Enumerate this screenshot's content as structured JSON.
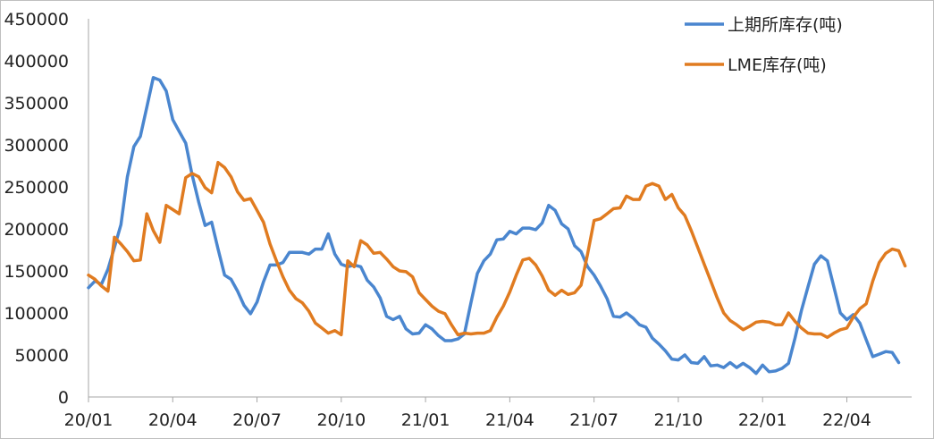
{
  "chart_data": {
    "type": "line",
    "title": "",
    "xlabel": "",
    "ylabel": "",
    "ylim": [
      0,
      450000
    ],
    "yticks": [
      0,
      50000,
      100000,
      150000,
      200000,
      250000,
      300000,
      350000,
      400000,
      450000
    ],
    "ytick_labels": [
      "0",
      "50000",
      "100000",
      "150000",
      "200000",
      "250000",
      "300000",
      "350000",
      "400000",
      "450000"
    ],
    "xticks": [
      {
        "t": 0,
        "label": "20/01"
      },
      {
        "t": 13,
        "label": "20/04"
      },
      {
        "t": 26,
        "label": "20/07"
      },
      {
        "t": 39,
        "label": "20/10"
      },
      {
        "t": 52,
        "label": "21/01"
      },
      {
        "t": 65,
        "label": "21/04"
      },
      {
        "t": 78,
        "label": "21/07"
      },
      {
        "t": 91,
        "label": "21/10"
      },
      {
        "t": 104,
        "label": "22/01"
      },
      {
        "t": 117,
        "label": "22/04"
      }
    ],
    "xlim": [
      0,
      127
    ],
    "legend_position": "top-right",
    "grid": false,
    "series": [
      {
        "name": "上期所库存(吨)",
        "color": "#4a86cf",
        "points": [
          [
            0,
            130000
          ],
          [
            1,
            138000
          ],
          [
            2,
            134000
          ],
          [
            3,
            152000
          ],
          [
            4,
            178000
          ],
          [
            5,
            205000
          ],
          [
            6,
            262000
          ],
          [
            7,
            298000
          ],
          [
            8,
            310000
          ],
          [
            9,
            345000
          ],
          [
            10,
            380000
          ],
          [
            11,
            377000
          ],
          [
            12,
            364000
          ],
          [
            13,
            330000
          ],
          [
            14,
            316000
          ],
          [
            15,
            302000
          ],
          [
            16,
            264000
          ],
          [
            17,
            232000
          ],
          [
            18,
            204000
          ],
          [
            19,
            208000
          ],
          [
            20,
            176000
          ],
          [
            21,
            145000
          ],
          [
            22,
            140000
          ],
          [
            23,
            126000
          ],
          [
            24,
            109000
          ],
          [
            25,
            99000
          ],
          [
            26,
            113000
          ],
          [
            27,
            137000
          ],
          [
            28,
            157000
          ],
          [
            29,
            157000
          ],
          [
            30,
            160000
          ],
          [
            31,
            172000
          ],
          [
            32,
            172000
          ],
          [
            33,
            172000
          ],
          [
            34,
            170000
          ],
          [
            35,
            176000
          ],
          [
            36,
            176000
          ],
          [
            37,
            194000
          ],
          [
            38,
            170000
          ],
          [
            39,
            158000
          ],
          [
            40,
            155000
          ],
          [
            41,
            157000
          ],
          [
            42,
            155000
          ],
          [
            43,
            139000
          ],
          [
            44,
            131000
          ],
          [
            45,
            118000
          ],
          [
            46,
            96000
          ],
          [
            47,
            92000
          ],
          [
            48,
            96000
          ],
          [
            49,
            81000
          ],
          [
            50,
            75000
          ],
          [
            51,
            76000
          ],
          [
            52,
            86000
          ],
          [
            53,
            81000
          ],
          [
            54,
            73000
          ],
          [
            55,
            67000
          ],
          [
            56,
            67000
          ],
          [
            57,
            69000
          ],
          [
            58,
            75000
          ],
          [
            59,
            112000
          ],
          [
            60,
            147000
          ],
          [
            61,
            162000
          ],
          [
            62,
            170000
          ],
          [
            63,
            187000
          ],
          [
            64,
            188000
          ],
          [
            65,
            197000
          ],
          [
            66,
            194000
          ],
          [
            67,
            201000
          ],
          [
            68,
            201000
          ],
          [
            69,
            199000
          ],
          [
            70,
            207000
          ],
          [
            71,
            228000
          ],
          [
            72,
            222000
          ],
          [
            73,
            206000
          ],
          [
            74,
            200000
          ],
          [
            75,
            180000
          ],
          [
            76,
            173000
          ],
          [
            77,
            155000
          ],
          [
            78,
            145000
          ],
          [
            79,
            132000
          ],
          [
            80,
            117000
          ],
          [
            81,
            96000
          ],
          [
            82,
            95000
          ],
          [
            83,
            100000
          ],
          [
            84,
            94000
          ],
          [
            85,
            86000
          ],
          [
            86,
            83000
          ],
          [
            87,
            70000
          ],
          [
            88,
            63000
          ],
          [
            89,
            55000
          ],
          [
            90,
            45000
          ],
          [
            91,
            44000
          ],
          [
            92,
            50000
          ],
          [
            93,
            41000
          ],
          [
            94,
            40000
          ],
          [
            95,
            48000
          ],
          [
            96,
            37000
          ],
          [
            97,
            38000
          ],
          [
            98,
            35000
          ],
          [
            99,
            41000
          ],
          [
            100,
            35000
          ],
          [
            101,
            40000
          ],
          [
            102,
            35000
          ],
          [
            103,
            28000
          ],
          [
            104,
            38000
          ],
          [
            105,
            30000
          ],
          [
            106,
            31000
          ],
          [
            107,
            34000
          ],
          [
            108,
            40000
          ],
          [
            109,
            70000
          ],
          [
            110,
            103000
          ],
          [
            111,
            131000
          ],
          [
            112,
            158000
          ],
          [
            113,
            168000
          ],
          [
            114,
            162000
          ],
          [
            115,
            131000
          ],
          [
            116,
            100000
          ],
          [
            117,
            92000
          ],
          [
            118,
            98000
          ],
          [
            119,
            88000
          ],
          [
            120,
            68000
          ],
          [
            121,
            48000
          ],
          [
            122,
            51000
          ],
          [
            123,
            54000
          ],
          [
            124,
            53000
          ],
          [
            125,
            41000
          ]
        ]
      },
      {
        "name": "LME库存(吨)",
        "color": "#e07b20",
        "points": [
          [
            0,
            145000
          ],
          [
            1,
            140000
          ],
          [
            2,
            132000
          ],
          [
            3,
            126000
          ],
          [
            4,
            190000
          ],
          [
            5,
            182000
          ],
          [
            6,
            173000
          ],
          [
            7,
            162000
          ],
          [
            8,
            163000
          ],
          [
            9,
            218000
          ],
          [
            10,
            198000
          ],
          [
            11,
            184000
          ],
          [
            12,
            228000
          ],
          [
            13,
            223000
          ],
          [
            14,
            218000
          ],
          [
            15,
            261000
          ],
          [
            16,
            266000
          ],
          [
            17,
            262000
          ],
          [
            18,
            249000
          ],
          [
            19,
            243000
          ],
          [
            20,
            279000
          ],
          [
            21,
            273000
          ],
          [
            22,
            262000
          ],
          [
            23,
            244000
          ],
          [
            24,
            234000
          ],
          [
            25,
            236000
          ],
          [
            26,
            222000
          ],
          [
            27,
            208000
          ],
          [
            28,
            182000
          ],
          [
            29,
            162000
          ],
          [
            30,
            143000
          ],
          [
            31,
            127000
          ],
          [
            32,
            117000
          ],
          [
            33,
            112000
          ],
          [
            34,
            102000
          ],
          [
            35,
            88000
          ],
          [
            36,
            82000
          ],
          [
            37,
            76000
          ],
          [
            38,
            79000
          ],
          [
            39,
            74000
          ],
          [
            40,
            162000
          ],
          [
            41,
            155000
          ],
          [
            42,
            186000
          ],
          [
            43,
            181000
          ],
          [
            44,
            171000
          ],
          [
            45,
            172000
          ],
          [
            46,
            164000
          ],
          [
            47,
            155000
          ],
          [
            48,
            150000
          ],
          [
            49,
            149000
          ],
          [
            50,
            143000
          ],
          [
            51,
            124000
          ],
          [
            52,
            116000
          ],
          [
            53,
            108000
          ],
          [
            54,
            102000
          ],
          [
            55,
            99000
          ],
          [
            56,
            86000
          ],
          [
            57,
            74000
          ],
          [
            58,
            76000
          ],
          [
            59,
            75000
          ],
          [
            60,
            76000
          ],
          [
            61,
            76000
          ],
          [
            62,
            79000
          ],
          [
            63,
            95000
          ],
          [
            64,
            108000
          ],
          [
            65,
            125000
          ],
          [
            66,
            145000
          ],
          [
            67,
            163000
          ],
          [
            68,
            165000
          ],
          [
            69,
            157000
          ],
          [
            70,
            144000
          ],
          [
            71,
            127000
          ],
          [
            72,
            121000
          ],
          [
            73,
            127000
          ],
          [
            74,
            122000
          ],
          [
            75,
            124000
          ],
          [
            76,
            133000
          ],
          [
            77,
            170000
          ],
          [
            78,
            210000
          ],
          [
            79,
            212000
          ],
          [
            80,
            218000
          ],
          [
            81,
            224000
          ],
          [
            82,
            225000
          ],
          [
            83,
            239000
          ],
          [
            84,
            235000
          ],
          [
            85,
            235000
          ],
          [
            86,
            251000
          ],
          [
            87,
            254000
          ],
          [
            88,
            251000
          ],
          [
            89,
            235000
          ],
          [
            90,
            241000
          ],
          [
            91,
            225000
          ],
          [
            92,
            216000
          ],
          [
            93,
            198000
          ],
          [
            94,
            178000
          ],
          [
            95,
            158000
          ],
          [
            96,
            138000
          ],
          [
            97,
            118000
          ],
          [
            98,
            100000
          ],
          [
            99,
            91000
          ],
          [
            100,
            86000
          ],
          [
            101,
            80000
          ],
          [
            102,
            84000
          ],
          [
            103,
            89000
          ],
          [
            104,
            90000
          ],
          [
            105,
            89000
          ],
          [
            106,
            86000
          ],
          [
            107,
            86000
          ],
          [
            108,
            100000
          ],
          [
            109,
            90000
          ],
          [
            110,
            82000
          ],
          [
            111,
            76000
          ],
          [
            112,
            75000
          ],
          [
            113,
            75000
          ],
          [
            114,
            71000
          ],
          [
            115,
            76000
          ],
          [
            116,
            80000
          ],
          [
            117,
            82000
          ],
          [
            118,
            95000
          ],
          [
            119,
            105000
          ],
          [
            120,
            111000
          ],
          [
            121,
            138000
          ],
          [
            122,
            160000
          ],
          [
            123,
            171000
          ],
          [
            124,
            176000
          ],
          [
            125,
            174000
          ],
          [
            126,
            156000
          ]
        ]
      }
    ]
  }
}
